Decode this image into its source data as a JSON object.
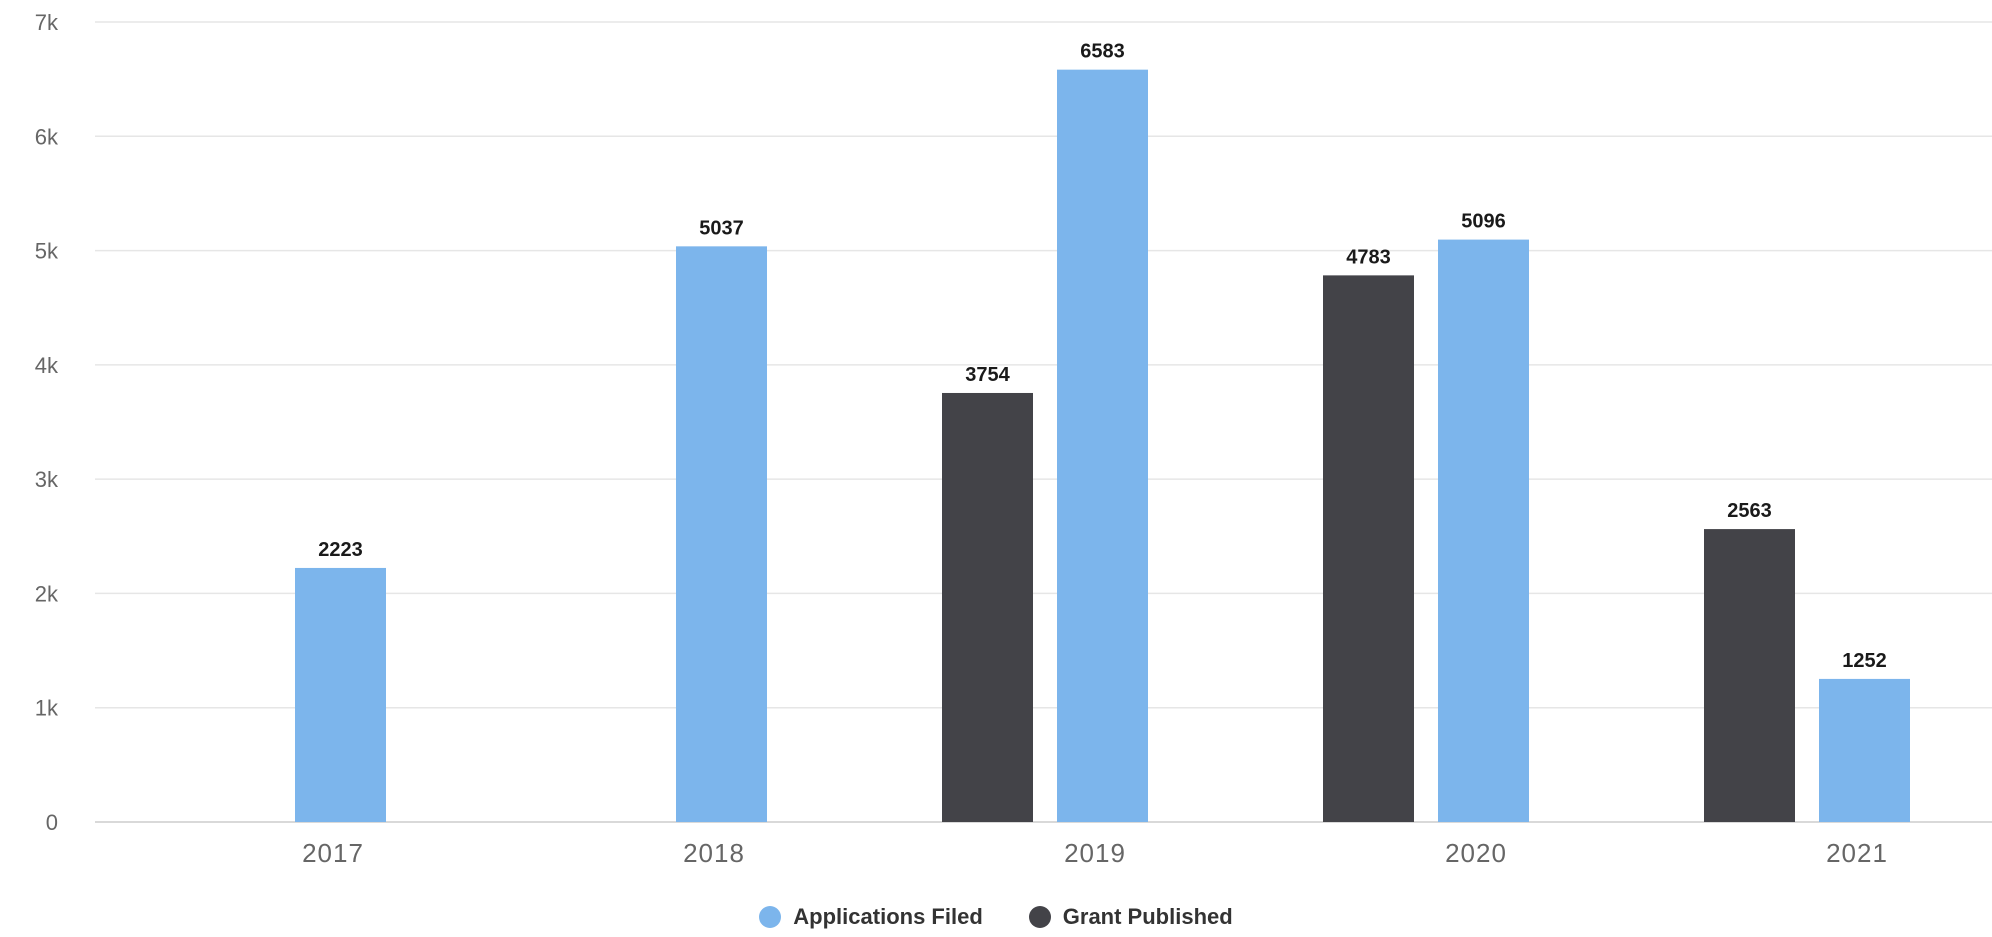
{
  "chart_data": {
    "type": "bar",
    "categories": [
      "2017",
      "2018",
      "2019",
      "2020",
      "2021"
    ],
    "series": [
      {
        "name": "Grant Published",
        "color": "#434348",
        "values": [
          null,
          null,
          3754,
          4783,
          2563
        ]
      },
      {
        "name": "Applications Filed",
        "color": "#7cb5ec",
        "values": [
          2223,
          5037,
          6583,
          5096,
          1252
        ]
      }
    ],
    "ylim": [
      0,
      7000
    ],
    "yticks": [
      0,
      1000,
      2000,
      3000,
      4000,
      5000,
      6000,
      7000
    ],
    "ytick_labels": [
      "0",
      "1k",
      "2k",
      "3k",
      "4k",
      "5k",
      "6k",
      "7k"
    ],
    "xlabel": "",
    "ylabel": "",
    "title": "",
    "grid": true,
    "legend": {
      "position": "bottom-center",
      "entries": [
        {
          "name": "Applications Filed",
          "color": "#7cb5ec"
        },
        {
          "name": "Grant Published",
          "color": "#434348"
        }
      ]
    }
  }
}
